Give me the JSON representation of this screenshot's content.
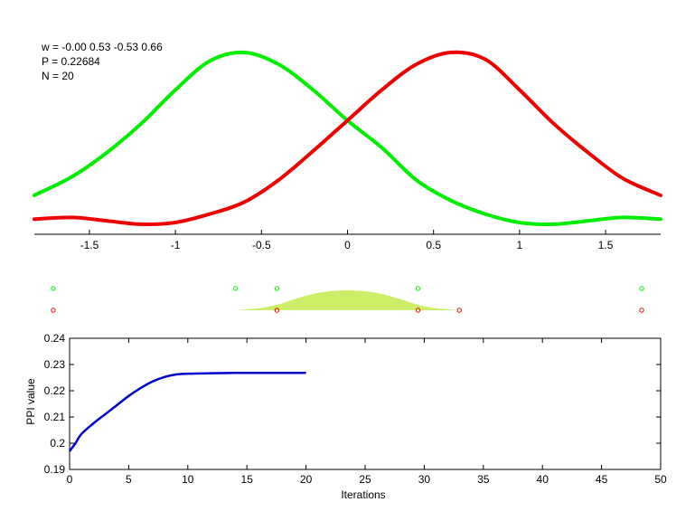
{
  "info": {
    "w_line": "w = -0.00  0.53  -0.53  0.66",
    "p_line": "P = 0.22684",
    "n_line": "N = 20"
  },
  "colors": {
    "green_curve": "#00ee00",
    "red_curve": "#ee0000",
    "area_fill": "#ccee66",
    "ppi_line": "#0000cc"
  },
  "chart_data": [
    {
      "type": "line",
      "title": "",
      "xlabel": "",
      "ylabel": "",
      "xlim": [
        -1.82,
        1.82
      ],
      "ylim": [
        -0.06,
        1.0
      ],
      "x_ticks": [
        -1.5,
        -1,
        -0.5,
        0,
        0.5,
        1,
        1.5
      ],
      "x_tick_labels": [
        "-1.5",
        "-1",
        "-0.5",
        "0",
        "0.5",
        "1",
        "1.5"
      ],
      "grid": false,
      "series": [
        {
          "color": "green",
          "x": [
            -1.82,
            -1.6,
            -1.4,
            -1.2,
            -1.0,
            -0.8,
            -0.6,
            -0.4,
            -0.2,
            0.0,
            0.2,
            0.4,
            0.6,
            0.8,
            1.0,
            1.2,
            1.4,
            1.6,
            1.82
          ],
          "y": [
            0.16,
            0.27,
            0.41,
            0.58,
            0.78,
            0.95,
            1.0,
            0.93,
            0.78,
            0.6,
            0.44,
            0.25,
            0.13,
            0.05,
            0.0,
            -0.01,
            0.01,
            0.03,
            0.02
          ]
        },
        {
          "color": "red",
          "x": [
            -1.82,
            -1.6,
            -1.4,
            -1.2,
            -1.0,
            -0.8,
            -0.6,
            -0.4,
            -0.2,
            0.0,
            0.2,
            0.4,
            0.6,
            0.8,
            1.0,
            1.2,
            1.4,
            1.6,
            1.82
          ],
          "y": [
            0.02,
            0.03,
            0.01,
            -0.01,
            0.0,
            0.05,
            0.12,
            0.25,
            0.42,
            0.6,
            0.78,
            0.93,
            1.0,
            0.96,
            0.78,
            0.58,
            0.41,
            0.26,
            0.16
          ]
        }
      ]
    },
    {
      "type": "scatter",
      "title": "",
      "xlim": [
        -1.82,
        1.82
      ],
      "green_points_x": [
        -1.71,
        -0.65,
        -0.41,
        0.41,
        1.71
      ],
      "red_points_x": [
        -1.71,
        -0.41,
        0.41,
        0.65,
        1.71
      ],
      "density_area": {
        "x": [
          -0.65,
          -0.5,
          -0.4,
          -0.3,
          -0.2,
          -0.1,
          0.0,
          0.1,
          0.2,
          0.3,
          0.4,
          0.5,
          0.65
        ],
        "y": [
          0.0,
          0.12,
          0.3,
          0.58,
          0.82,
          0.96,
          1.0,
          0.96,
          0.82,
          0.58,
          0.3,
          0.12,
          0.0
        ]
      }
    },
    {
      "type": "line",
      "title": "",
      "xlabel": "Iterations",
      "ylabel": "PPI value",
      "xlim": [
        0,
        50
      ],
      "ylim": [
        0.19,
        0.24
      ],
      "x_ticks": [
        0,
        5,
        10,
        15,
        20,
        25,
        30,
        35,
        40,
        45,
        50
      ],
      "x_tick_labels": [
        "0",
        "5",
        "10",
        "15",
        "20",
        "25",
        "30",
        "35",
        "40",
        "45",
        "50"
      ],
      "y_ticks": [
        0.19,
        0.2,
        0.21,
        0.22,
        0.23,
        0.24
      ],
      "y_tick_labels": [
        "0.19",
        "0.2",
        "0.21",
        "0.22",
        "0.23",
        "0.24"
      ],
      "grid": false,
      "series": [
        {
          "x": [
            0,
            0.5,
            1,
            2,
            3,
            4,
            5,
            6,
            7,
            8,
            9,
            10,
            12,
            14,
            16,
            18,
            20
          ],
          "y": [
            0.197,
            0.2,
            0.2035,
            0.2075,
            0.211,
            0.2145,
            0.218,
            0.221,
            0.2235,
            0.2252,
            0.2262,
            0.2265,
            0.2267,
            0.2268,
            0.2268,
            0.2268,
            0.2268
          ]
        }
      ]
    }
  ]
}
